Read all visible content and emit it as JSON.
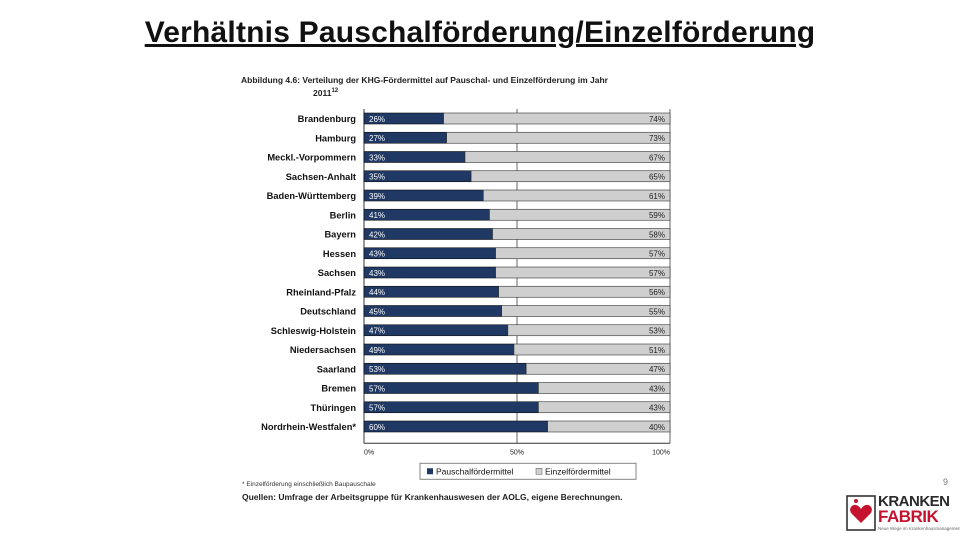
{
  "slide": {
    "title": "Verhältnis Pauschalförderung/Einzelförderung",
    "page_number": "9"
  },
  "figure": {
    "caption_line1": "Abbildung 4.6: Verteilung der KHG-Fördermittel auf Pauschal- und Einzelförderung im Jahr",
    "caption_line2": "2011",
    "caption_sup": "12",
    "footnote": "* Einzelförderung einschließlich Baupauschale",
    "source": "Quellen: Umfrage der Arbeitsgruppe für Krankenhauswesen der AOLG, eigene Berechnungen."
  },
  "colors": {
    "pauschal": "#1f3864",
    "einzel": "#cfcfcf",
    "grid": "#555555"
  },
  "chart_data": {
    "type": "bar",
    "orientation": "horizontal",
    "stacked": true,
    "percent_stacked": true,
    "categories": [
      "Brandenburg",
      "Hamburg",
      "Meckl.-Vorpommern",
      "Sachsen-Anhalt",
      "Baden-Württemberg",
      "Berlin",
      "Bayern",
      "Hessen",
      "Sachsen",
      "Rheinland-Pfalz",
      "Deutschland",
      "Schleswig-Holstein",
      "Niedersachsen",
      "Saarland",
      "Bremen",
      "Thüringen",
      "Nordrhein-Westfalen*"
    ],
    "series": [
      {
        "name": "Pauschalfördermittel",
        "values": [
          26,
          27,
          33,
          35,
          39,
          41,
          42,
          43,
          43,
          44,
          45,
          47,
          49,
          53,
          57,
          57,
          60
        ],
        "labels": [
          "26%",
          "27%",
          "33%",
          "35%",
          "39%",
          "41%",
          "42%",
          "43%",
          "43%",
          "44%",
          "45%",
          "47%",
          "49%",
          "53%",
          "57%",
          "57%",
          "60%"
        ]
      },
      {
        "name": "Einzelfördermittel",
        "values": [
          74,
          73,
          67,
          65,
          61,
          59,
          58,
          57,
          57,
          56,
          55,
          53,
          51,
          47,
          43,
          43,
          40
        ],
        "labels": [
          "74%",
          "73%",
          "67%",
          "65%",
          "61%",
          "59%",
          "58%",
          "57%",
          "57%",
          "56%",
          "55%",
          "53%",
          "51%",
          "47%",
          "43%",
          "43%",
          "40%"
        ]
      }
    ],
    "xlim": [
      0,
      100
    ],
    "xticks": [
      "0%",
      "50%",
      "100%"
    ],
    "legend_position": "bottom-center",
    "grid": true
  },
  "logo": {
    "line1": "KRANKEN",
    "line2": "FABRIK",
    "tagline": "Neue Wege im Krankenhausmanagement"
  }
}
